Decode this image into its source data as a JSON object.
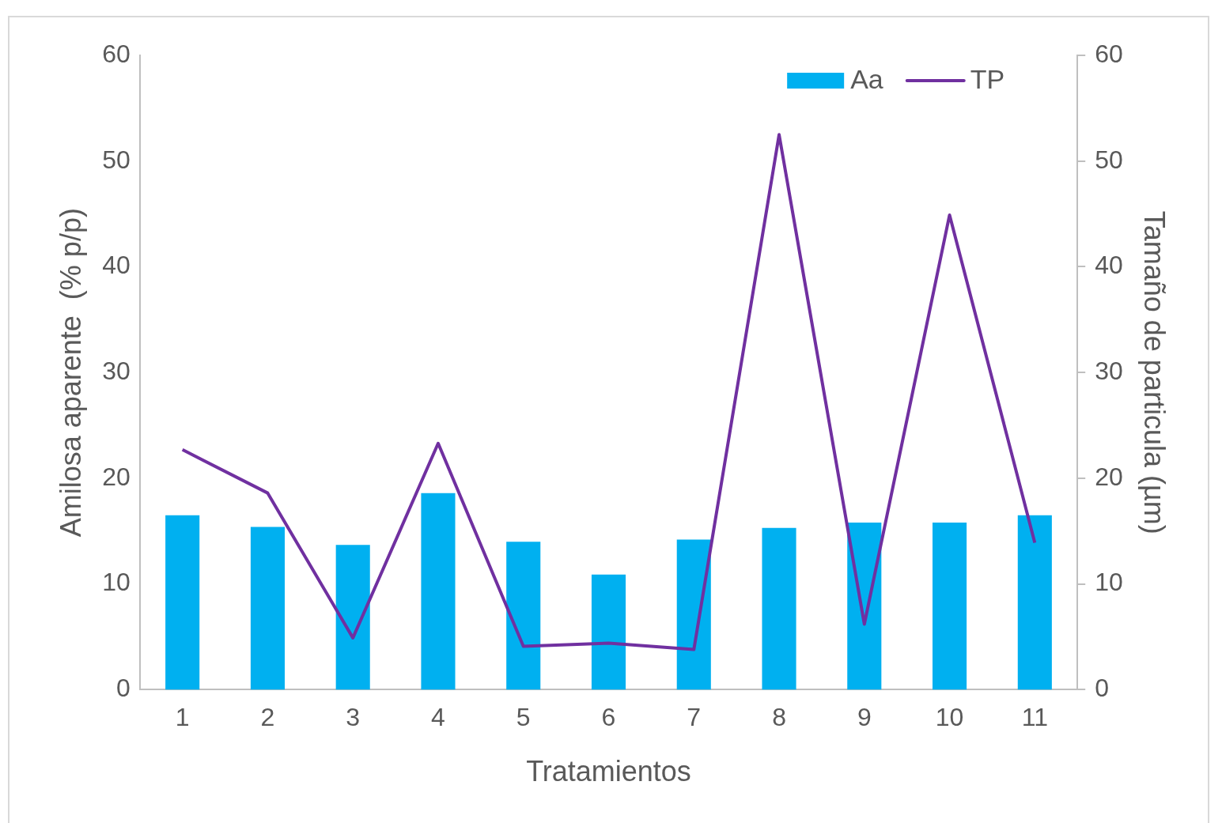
{
  "chart_data": {
    "type": "bar",
    "xlabel": "Tratamientos",
    "ylabel": "Amilosa aparente  (% p/p)",
    "y2label": "Tamaño de particula (µm)",
    "categories": [
      "1",
      "2",
      "3",
      "4",
      "5",
      "6",
      "7",
      "8",
      "9",
      "10",
      "11"
    ],
    "series": [
      {
        "name": "Aa",
        "color": "#00b0f0",
        "values": [
          16.5,
          15.4,
          13.7,
          18.6,
          14.0,
          10.9,
          14.2,
          15.3,
          15.8,
          15.8,
          16.5
        ]
      },
      {
        "name": "TP",
        "type": "line",
        "axis": "y2",
        "color": "#7030a0",
        "values": [
          22.7,
          18.6,
          4.9,
          23.3,
          4.1,
          4.4,
          3.8,
          52.5,
          6.2,
          44.9,
          13.9
        ]
      }
    ],
    "ylim": [
      0,
      60
    ],
    "yticks": [
      0,
      10,
      20,
      30,
      40,
      50,
      60
    ],
    "y2lim": [
      0,
      60
    ],
    "y2ticks": [
      0,
      10,
      20,
      30,
      40,
      50,
      60
    ],
    "legend": "top right",
    "marker": "none",
    "line_style": "solid"
  }
}
